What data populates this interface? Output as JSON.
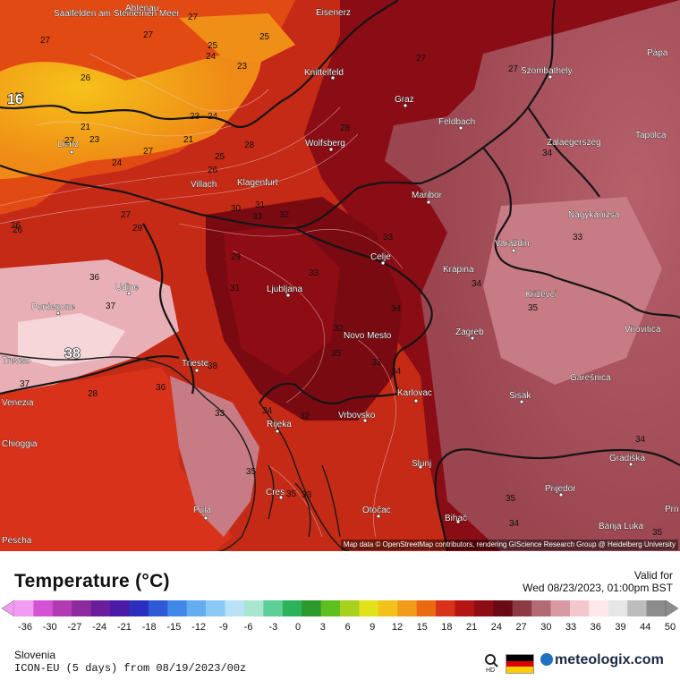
{
  "map": {
    "attribution": "Map data © OpenStreetMap contributors, rendering GIScience Research Group @ Heidelberg University",
    "cities": [
      {
        "name": "Saalfelden am Steinernen Meer"
      },
      {
        "name": "Abtenau"
      },
      {
        "name": "Eisenerz"
      },
      {
        "name": "Knittelfeld"
      },
      {
        "name": "Szombathely"
      },
      {
        "name": "Pápa"
      },
      {
        "name": "Graz"
      },
      {
        "name": "Feldbach"
      },
      {
        "name": "Zalaegerszeg"
      },
      {
        "name": "Tapolca"
      },
      {
        "name": "Lienz"
      },
      {
        "name": "Wolfsberg"
      },
      {
        "name": "Villach"
      },
      {
        "name": "Klagenfurt"
      },
      {
        "name": "Maribor"
      },
      {
        "name": "Nagykanizsa"
      },
      {
        "name": "Varaždin"
      },
      {
        "name": "Celje"
      },
      {
        "name": "Krapina"
      },
      {
        "name": "Udine"
      },
      {
        "name": "Ljubljana"
      },
      {
        "name": "Križevci"
      },
      {
        "name": "Pordenone"
      },
      {
        "name": "Zagreb"
      },
      {
        "name": "Virovitica"
      },
      {
        "name": "Novo Mesto"
      },
      {
        "name": "Treviso"
      },
      {
        "name": "Trieste"
      },
      {
        "name": "Garešnica"
      },
      {
        "name": "Karlovac"
      },
      {
        "name": "Sisak"
      },
      {
        "name": "Venezia"
      },
      {
        "name": "Rijeka"
      },
      {
        "name": "Vrbovsko"
      },
      {
        "name": "Chioggia"
      },
      {
        "name": "Slunj"
      },
      {
        "name": "Gradiška"
      },
      {
        "name": "Prijedor"
      },
      {
        "name": "Cres"
      },
      {
        "name": "Pula"
      },
      {
        "name": "Otočac"
      },
      {
        "name": "Bihać"
      },
      {
        "name": "Banja Luka"
      },
      {
        "name": "Prn"
      },
      {
        "name": "Pescha"
      }
    ],
    "isotherm_labels": [
      "27",
      "27",
      "27",
      "25",
      "24",
      "23",
      "25",
      "27",
      "27",
      "26",
      "21",
      "23",
      "24",
      "16",
      "27",
      "21",
      "23",
      "27",
      "28",
      "24",
      "28",
      "25",
      "26",
      "30",
      "31",
      "33",
      "32",
      "27",
      "26",
      "29",
      "29",
      "31",
      "33",
      "36",
      "37",
      "38",
      "37",
      "28",
      "36",
      "33",
      "34",
      "32",
      "34",
      "34",
      "35",
      "33",
      "34",
      "33",
      "35",
      "32",
      "34",
      "33",
      "35",
      "33",
      "34",
      "35",
      "35",
      "34",
      "35",
      "26"
    ],
    "hot_spot_label": "38",
    "cold_spot_label": "16"
  },
  "legend": {
    "title": "Temperature (°C)",
    "valid_label": "Valid for",
    "valid_time": "Wed 08/23/2023, 01:00pm BST",
    "ticks": [
      "-36",
      "-30",
      "-27",
      "-24",
      "-21",
      "-18",
      "-15",
      "-12",
      "-9",
      "-6",
      "-3",
      "0",
      "3",
      "6",
      "9",
      "12",
      "15",
      "18",
      "21",
      "24",
      "27",
      "30",
      "33",
      "36",
      "39",
      "44",
      "50"
    ],
    "colors": [
      "#f09cf0",
      "#d452d4",
      "#b23bb2",
      "#8e2a9e",
      "#6a1d9c",
      "#4b1aa6",
      "#2a2fbd",
      "#2f5ad6",
      "#3f88e8",
      "#64aef0",
      "#8ccaf6",
      "#b9e2f6",
      "#a8e6cf",
      "#5fcf9a",
      "#2bb35c",
      "#2c9a2c",
      "#5fbf1f",
      "#a6d11c",
      "#e2e21a",
      "#f2c21a",
      "#f29a1a",
      "#ea6a14",
      "#d8331a",
      "#b41414",
      "#8e0c14",
      "#6a0a16",
      "#8c3a44",
      "#b46a74",
      "#d89aa2",
      "#f2c8cc",
      "#ffe8ea",
      "#e6e6e6",
      "#bdbdbd",
      "#8c8c8c"
    ],
    "region": "Slovenia",
    "model": "ICON-EU (5 days) from 08/19/2023/00z",
    "hd_label": "HD",
    "brand": "meteologix.com",
    "flag_colors": [
      "#000000",
      "#dd0000",
      "#ffce00"
    ]
  }
}
